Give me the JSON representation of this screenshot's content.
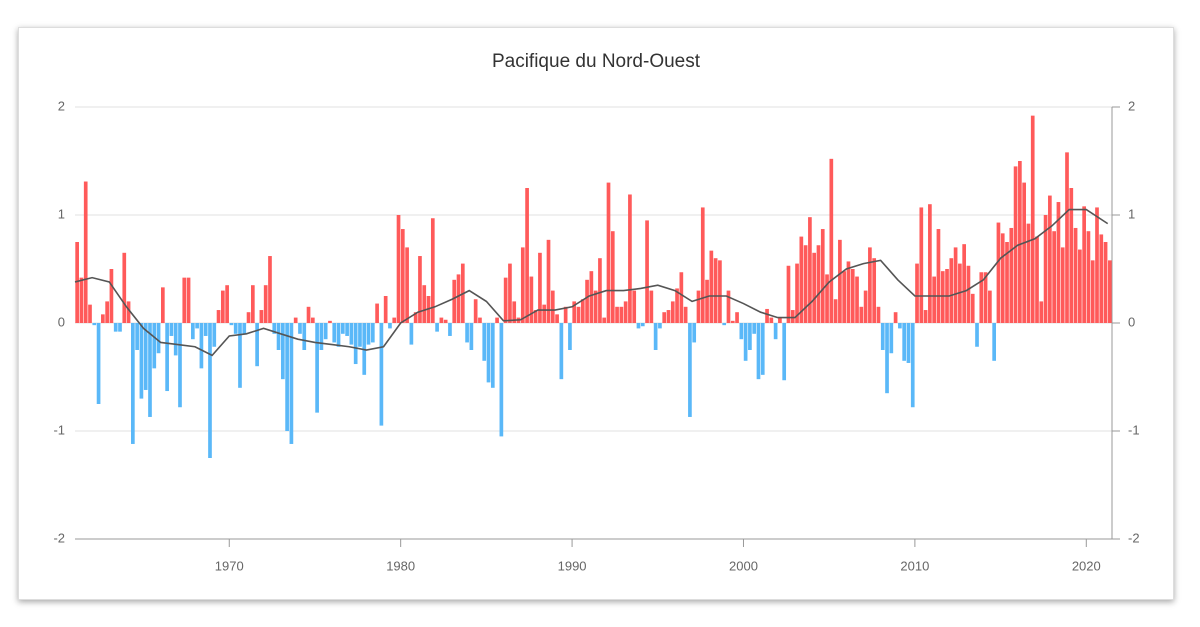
{
  "chart_data": {
    "type": "bar",
    "title": "Pacifique du Nord-Ouest",
    "positive_color": "#ff5a5a",
    "negative_color": "#5ab8f8",
    "xlim": [
      1961,
      2021.5
    ],
    "xticks": [
      1970,
      1980,
      1990,
      2000,
      2010,
      2020
    ],
    "ylim": [
      -2,
      2
    ],
    "yticks": [
      -2,
      -1,
      0,
      1,
      2
    ],
    "y2lim": [
      -2,
      2
    ],
    "y2ticks": [
      -2,
      -1,
      0,
      1,
      2
    ],
    "grid": true,
    "x": [
      1961,
      1961.25,
      1961.5,
      1961.75,
      1962,
      1962.25,
      1962.5,
      1962.75,
      1963,
      1963.25,
      1963.5,
      1963.75,
      1964,
      1964.25,
      1964.5,
      1964.75,
      1965,
      1965.25,
      1965.5,
      1965.75,
      1966,
      1966.25,
      1966.5,
      1966.75,
      1967,
      1967.25,
      1967.5,
      1967.75,
      1968,
      1968.25,
      1968.5,
      1968.75,
      1969,
      1969.25,
      1969.5,
      1969.75,
      1970,
      1970.25,
      1970.5,
      1970.75,
      1971,
      1971.25,
      1971.5,
      1971.75,
      1972,
      1972.25,
      1972.5,
      1972.75,
      1973,
      1973.25,
      1973.5,
      1973.75,
      1974,
      1974.25,
      1974.5,
      1974.75,
      1975,
      1975.25,
      1975.5,
      1975.75,
      1976,
      1976.25,
      1976.5,
      1976.75,
      1977,
      1977.25,
      1977.5,
      1977.75,
      1978,
      1978.25,
      1978.5,
      1978.75,
      1979,
      1979.25,
      1979.5,
      1979.75,
      1980,
      1980.25,
      1980.5,
      1980.75,
      1981,
      1981.25,
      1981.5,
      1981.75,
      1982,
      1982.25,
      1982.5,
      1982.75,
      1983,
      1983.25,
      1983.5,
      1983.75,
      1984,
      1984.25,
      1984.5,
      1984.75,
      1985,
      1985.25,
      1985.5,
      1985.75,
      1986,
      1986.25,
      1986.5,
      1986.75,
      1987,
      1987.25,
      1987.5,
      1987.75,
      1988,
      1988.25,
      1988.5,
      1988.75,
      1989,
      1989.25,
      1989.5,
      1989.75,
      1990,
      1990.25,
      1990.5,
      1990.75,
      1991,
      1991.25,
      1991.5,
      1991.75,
      1992,
      1992.25,
      1992.5,
      1992.75,
      1993,
      1993.25,
      1993.5,
      1993.75,
      1994,
      1994.25,
      1994.5,
      1994.75,
      1995,
      1995.25,
      1995.5,
      1995.75,
      1996,
      1996.25,
      1996.5,
      1996.75,
      1997,
      1997.25,
      1997.5,
      1997.75,
      1998,
      1998.25,
      1998.5,
      1998.75,
      1999,
      1999.25,
      1999.5,
      1999.75,
      2000,
      2000.25,
      2000.5,
      2000.75,
      2001,
      2001.25,
      2001.5,
      2001.75,
      2002,
      2002.25,
      2002.5,
      2002.75,
      2003,
      2003.25,
      2003.5,
      2003.75,
      2004,
      2004.25,
      2004.5,
      2004.75,
      2005,
      2005.25,
      2005.5,
      2005.75,
      2006,
      2006.25,
      2006.5,
      2006.75,
      2007,
      2007.25,
      2007.5,
      2007.75,
      2008,
      2008.25,
      2008.5,
      2008.75,
      2009,
      2009.25,
      2009.5,
      2009.75,
      2010,
      2010.25,
      2010.5,
      2010.75,
      2011,
      2011.25,
      2011.5,
      2011.75,
      2012,
      2012.25,
      2012.5,
      2012.75,
      2013,
      2013.25,
      2013.5,
      2013.75,
      2014,
      2014.25,
      2014.5,
      2014.75,
      2015,
      2015.25,
      2015.5,
      2015.75,
      2016,
      2016.25,
      2016.5,
      2016.75,
      2017,
      2017.25,
      2017.5,
      2017.75,
      2018,
      2018.25,
      2018.5,
      2018.75,
      2019,
      2019.25,
      2019.5,
      2019.75,
      2020,
      2020.25,
      2020.5,
      2020.75,
      2021,
      2021.25
    ],
    "values": [
      0.75,
      0.42,
      1.31,
      0.17,
      -0.02,
      -0.75,
      0.08,
      0.2,
      0.5,
      -0.08,
      -0.08,
      0.65,
      0.2,
      -1.12,
      -0.25,
      -0.7,
      -0.62,
      -0.87,
      -0.42,
      -0.28,
      0.33,
      -0.63,
      -0.12,
      -0.3,
      -0.78,
      0.42,
      0.42,
      -0.15,
      -0.05,
      -0.42,
      -0.12,
      -1.25,
      -0.22,
      0.12,
      0.3,
      0.35,
      -0.02,
      -0.1,
      -0.6,
      -0.1,
      0.1,
      0.35,
      -0.4,
      0.12,
      0.35,
      0.62,
      -0.1,
      -0.25,
      -0.52,
      -1.0,
      -1.12,
      0.05,
      -0.1,
      -0.25,
      0.15,
      0.05,
      -0.83,
      -0.25,
      -0.15,
      0.02,
      -0.18,
      -0.22,
      -0.1,
      -0.12,
      -0.2,
      -0.38,
      -0.22,
      -0.48,
      -0.2,
      -0.18,
      0.18,
      -0.95,
      0.25,
      -0.05,
      0.05,
      1.0,
      0.87,
      0.7,
      -0.2,
      0.1,
      0.62,
      0.35,
      0.25,
      0.97,
      -0.08,
      0.05,
      0.03,
      -0.12,
      0.4,
      0.45,
      0.55,
      -0.18,
      -0.25,
      0.22,
      0.05,
      -0.35,
      -0.55,
      -0.6,
      0.05,
      -1.05,
      0.42,
      0.55,
      0.2,
      0.05,
      0.7,
      1.25,
      0.43,
      0.12,
      0.65,
      0.17,
      0.77,
      0.3,
      0.08,
      -0.52,
      0.15,
      -0.25,
      0.2,
      0.15,
      0.22,
      0.4,
      0.48,
      0.3,
      0.6,
      0.05,
      1.3,
      0.85,
      0.15,
      0.15,
      0.2,
      1.19,
      0.3,
      -0.05,
      -0.03,
      0.95,
      0.3,
      -0.25,
      -0.05,
      0.1,
      0.12,
      0.2,
      0.32,
      0.47,
      0.15,
      -0.87,
      -0.18,
      0.3,
      1.07,
      0.4,
      0.67,
      0.6,
      0.58,
      -0.02,
      0.3,
      0.02,
      0.1,
      -0.15,
      -0.35,
      -0.25,
      -0.1,
      -0.52,
      -0.48,
      0.13,
      0.05,
      -0.15,
      0.05,
      -0.53,
      0.53,
      0.12,
      0.55,
      0.8,
      0.72,
      0.98,
      0.65,
      0.72,
      0.87,
      0.45,
      1.52,
      0.22,
      0.77,
      0.48,
      0.57,
      0.5,
      0.43,
      0.15,
      0.3,
      0.7,
      0.6,
      0.15,
      -0.25,
      -0.65,
      -0.28,
      0.1,
      -0.05,
      -0.35,
      -0.37,
      -0.78,
      0.55,
      1.07,
      0.12,
      1.1,
      0.43,
      0.87,
      0.48,
      0.5,
      0.6,
      0.7,
      0.55,
      0.73,
      0.53,
      0.27,
      -0.22,
      0.47,
      0.47,
      0.3,
      -0.35,
      0.93,
      0.83,
      0.75,
      0.88,
      1.45,
      1.5,
      1.3,
      0.92,
      1.92,
      0.8,
      0.2,
      1.0,
      1.18,
      0.85,
      1.12,
      0.7,
      1.58,
      1.25,
      0.88,
      0.68,
      1.08,
      0.85,
      0.58,
      1.07,
      0.82,
      0.75,
      0.58
    ],
    "line": {
      "color": "#555555",
      "x": [
        1961,
        1962,
        1963,
        1964,
        1965,
        1966,
        1967,
        1968,
        1969,
        1970,
        1971,
        1972,
        1973,
        1974,
        1975,
        1976,
        1977,
        1978,
        1979,
        1980,
        1981,
        1982,
        1983,
        1984,
        1985,
        1986,
        1987,
        1988,
        1989,
        1990,
        1991,
        1992,
        1993,
        1994,
        1995,
        1996,
        1997,
        1998,
        1999,
        2000,
        2001,
        2002,
        2003,
        2004,
        2005,
        2006,
        2007,
        2008,
        2009,
        2010,
        2011,
        2012,
        2013,
        2014,
        2015,
        2016,
        2017,
        2018,
        2019,
        2020,
        2021.25
      ],
      "values": [
        0.38,
        0.42,
        0.38,
        0.15,
        -0.05,
        -0.18,
        -0.2,
        -0.22,
        -0.3,
        -0.12,
        -0.1,
        -0.05,
        -0.1,
        -0.15,
        -0.18,
        -0.2,
        -0.22,
        -0.25,
        -0.22,
        0,
        0.1,
        0.15,
        0.22,
        0.3,
        0.2,
        0.02,
        0.03,
        0.12,
        0.12,
        0.15,
        0.25,
        0.3,
        0.3,
        0.32,
        0.35,
        0.3,
        0.2,
        0.25,
        0.25,
        0.18,
        0.1,
        0.05,
        0.05,
        0.2,
        0.38,
        0.5,
        0.55,
        0.58,
        0.4,
        0.25,
        0.25,
        0.25,
        0.3,
        0.4,
        0.6,
        0.72,
        0.78,
        0.9,
        1.05,
        1.05,
        0.92
      ]
    }
  }
}
